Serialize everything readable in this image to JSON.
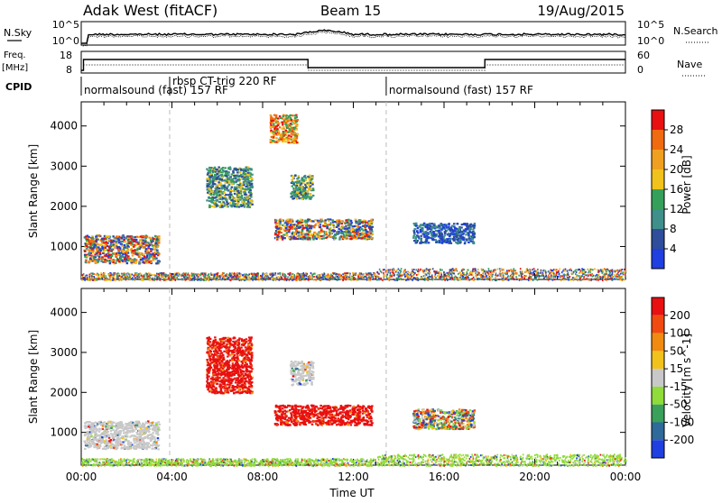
{
  "header": {
    "title": "Adak West (fitACF)",
    "beam": "Beam 15",
    "date": "19/Aug/2015"
  },
  "param_rows": {
    "nsky": {
      "label": "N.Sky",
      "ticks": [
        "10^5",
        "10^0"
      ],
      "right_ticks": [
        "10^5",
        "10^0"
      ],
      "right_label": "N.Search"
    },
    "freq": {
      "label_line1": "Freq.",
      "label_line2": "[MHz]",
      "ticks": [
        "18",
        "8"
      ],
      "right_ticks": [
        "60",
        "0"
      ],
      "right_label": "Nave"
    },
    "cpid": {
      "label": "CPID",
      "segments": [
        {
          "start_h": 0.0,
          "text": "normalsound (fast) 157 RF"
        },
        {
          "start_h": 3.9,
          "text": "rbsp CT-trig 220 RF"
        },
        {
          "start_h": 13.45,
          "text": "normalsound (fast) 157 RF"
        }
      ]
    }
  },
  "chart_data": [
    {
      "type": "heatmap",
      "name": "power",
      "xlabel": "",
      "ylabel": "Slant Range [km]",
      "xlim": [
        0,
        24
      ],
      "ylim": [
        180,
        4600
      ],
      "yticks": [
        1000,
        2000,
        3000,
        4000
      ],
      "colorbar": {
        "label": "Power [dB]",
        "ticks": [
          "28",
          "24",
          "20",
          "16",
          "12",
          "8",
          "4"
        ],
        "bins": [
          {
            "range": [
              0,
              4
            ],
            "color": "#1f3fe0"
          },
          {
            "range": [
              4,
              8
            ],
            "color": "#2e4d9a"
          },
          {
            "range": [
              8,
              12
            ],
            "color": "#3f8f8a"
          },
          {
            "range": [
              12,
              16
            ],
            "color": "#35a05a"
          },
          {
            "range": [
              16,
              20
            ],
            "color": "#f2c21c"
          },
          {
            "range": [
              20,
              24
            ],
            "color": "#f0a020"
          },
          {
            "range": [
              24,
              28
            ],
            "color": "#f06a10"
          },
          {
            "range": [
              28,
              32
            ],
            "color": "#e81010"
          }
        ]
      },
      "regions": [
        {
          "h": [
            0.1,
            3.4
          ],
          "r": [
            600,
            1300
          ],
          "level": "mixed"
        },
        {
          "h": [
            5.5,
            7.5
          ],
          "r": [
            2000,
            3000
          ],
          "level": "mid"
        },
        {
          "h": [
            8.5,
            12.8
          ],
          "r": [
            1200,
            1700
          ],
          "level": "mixed"
        },
        {
          "h": [
            9.2,
            10.2
          ],
          "r": [
            2200,
            2800
          ],
          "level": "mid"
        },
        {
          "h": [
            14.6,
            17.3
          ],
          "r": [
            1100,
            1600
          ],
          "level": "low"
        },
        {
          "h": [
            8.3,
            9.5
          ],
          "r": [
            3600,
            4300
          ],
          "level": "high"
        }
      ]
    },
    {
      "type": "heatmap",
      "name": "velocity",
      "xlabel": "Time UT",
      "ylabel": "Slant Range [km]",
      "xlim": [
        0,
        24
      ],
      "ylim": [
        180,
        4600
      ],
      "yticks": [
        1000,
        2000,
        3000,
        4000
      ],
      "xticks": [
        "00:00",
        "04:00",
        "08:00",
        "12:00",
        "16:00",
        "20:00",
        "00:00"
      ],
      "colorbar": {
        "label": "Velocity [m s^-1]",
        "ticks": [
          "200",
          "100",
          "50",
          "15",
          "-15",
          "-50",
          "-100",
          "-200"
        ],
        "bins": [
          {
            "range": [
              200,
              300
            ],
            "color": "#1f3fe0"
          },
          {
            "range": [
              100,
              200
            ],
            "color": "#2e6a9a"
          },
          {
            "range": [
              50,
              100
            ],
            "color": "#3aa05a"
          },
          {
            "range": [
              15,
              50
            ],
            "color": "#8fdc3a"
          },
          {
            "range": [
              -15,
              15
            ],
            "color": "#c8c8c8"
          },
          {
            "range": [
              -50,
              -15
            ],
            "color": "#f2c21c"
          },
          {
            "range": [
              -100,
              -50
            ],
            "color": "#f08a10"
          },
          {
            "range": [
              -200,
              -100
            ],
            "color": "#f04a10"
          },
          {
            "range": [
              -300,
              -200
            ],
            "color": "#e81010"
          }
        ]
      },
      "regions": [
        {
          "h": [
            0.1,
            3.4
          ],
          "r": [
            600,
            1300
          ],
          "level": "gray"
        },
        {
          "h": [
            5.5,
            7.5
          ],
          "r": [
            2000,
            3400
          ],
          "level": "red"
        },
        {
          "h": [
            8.5,
            12.8
          ],
          "r": [
            1200,
            1700
          ],
          "level": "red"
        },
        {
          "h": [
            9.2,
            10.2
          ],
          "r": [
            2200,
            2800
          ],
          "level": "gray"
        },
        {
          "h": [
            14.6,
            17.3
          ],
          "r": [
            1100,
            1600
          ],
          "level": "mixedblue"
        }
      ]
    }
  ]
}
